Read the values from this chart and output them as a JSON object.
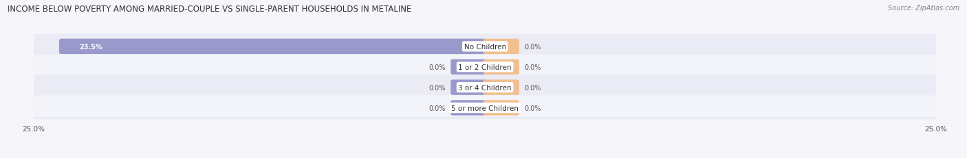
{
  "title": "INCOME BELOW POVERTY AMONG MARRIED-COUPLE VS SINGLE-PARENT HOUSEHOLDS IN METALINE",
  "source": "Source: ZipAtlas.com",
  "categories": [
    "No Children",
    "1 or 2 Children",
    "3 or 4 Children",
    "5 or more Children"
  ],
  "married_values": [
    23.5,
    0.0,
    0.0,
    0.0
  ],
  "single_values": [
    0.0,
    0.0,
    0.0,
    0.0
  ],
  "married_color": "#9999cc",
  "single_color": "#f0c090",
  "row_bg_even": "#ebebf5",
  "row_bg_odd": "#f3f3fa",
  "x_max": 25.0,
  "x_min": -25.0,
  "title_fontsize": 8.5,
  "source_fontsize": 7.0,
  "label_fontsize": 7.0,
  "category_fontsize": 7.5,
  "axis_label_fontsize": 7.5,
  "background_color": "#f5f5fa",
  "stub_size": 1.8,
  "bar_height": 0.55
}
